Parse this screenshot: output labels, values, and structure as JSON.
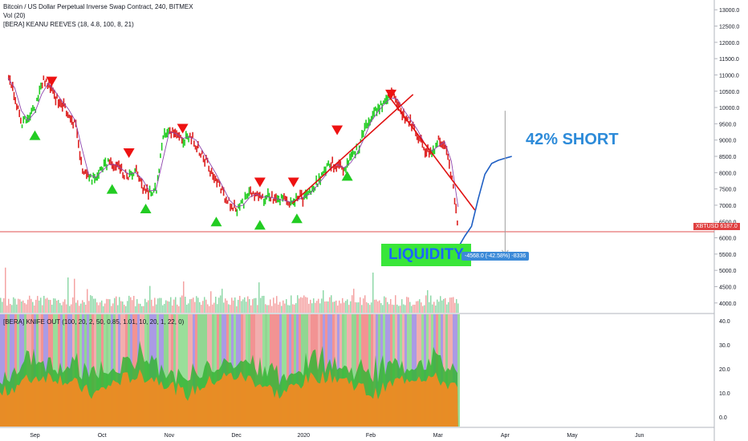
{
  "header": {
    "title": "Bitcoin / US Dollar Perpetual Inverse Swap Contract, 240, BITMEX",
    "volume_label": "Vol (20)",
    "indicator_label": "[BERA] KEANU REEVES (18, 4.8, 100, 8, 21)"
  },
  "annotations": {
    "short_callout": "42% SHORT",
    "liquidity_label": "LIQUIDITY",
    "measure_label": "-4568.0 (-42.58%) -8336",
    "price_tag": "XBTUSD 6187.0"
  },
  "lower_pane": {
    "label": "[BERA] KNIFE OUT (100, 20, 2, 50, 0.85, 1.01, 10, 20, 1, 22, 0)",
    "ticks": [
      "40.0",
      "30.0",
      "20.0",
      "10.0",
      "0.0"
    ],
    "tick_values": [
      40,
      30,
      20,
      10,
      0
    ]
  },
  "colors": {
    "up": "#26a69a",
    "down": "#e53935",
    "green_candle": "#22cc22",
    "red_candle": "#dd2222",
    "purple_line": "#8e44ad",
    "trend_line": "#e01010",
    "projection": "#1f5fc4",
    "triangle_up": "#22cc22",
    "triangle_down": "#ee1111",
    "hline": "#e05050"
  },
  "chart_data": {
    "type": "line",
    "title": "Bitcoin / US Dollar Perpetual Inverse Swap Contract, 240, BITMEX",
    "x_tick_labels": [
      "Sep",
      "Oct",
      "Nov",
      "Dec",
      "2020",
      "Feb",
      "Mar",
      "Apr",
      "May",
      "Jun"
    ],
    "y_tick_labels": [
      "13000.0",
      "12500.0",
      "12000.0",
      "11500.0",
      "11000.0",
      "10500.0",
      "10000.0",
      "9500.0",
      "9000.0",
      "8500.0",
      "8000.0",
      "7500.0",
      "7000.0",
      "6500.0",
      "6000.0",
      "5500.0",
      "5000.0",
      "4500.0",
      "4000.0"
    ],
    "y_tick_values": [
      13000,
      12500,
      12000,
      11500,
      11000,
      10500,
      10000,
      9500,
      9000,
      8500,
      8000,
      7500,
      7000,
      6500,
      6000,
      5500,
      5000,
      4500,
      4000
    ],
    "ylim": [
      3700,
      13300
    ],
    "x_index_range": [
      0,
      92
    ],
    "month_ticks": [
      {
        "label": "Sep",
        "x": 4
      },
      {
        "label": "Oct",
        "x": 14
      },
      {
        "label": "Nov",
        "x": 24
      },
      {
        "label": "Dec",
        "x": 34
      },
      {
        "label": "2020",
        "x": 44
      },
      {
        "label": "Feb",
        "x": 54
      },
      {
        "label": "Mar",
        "x": 64
      },
      {
        "label": "Apr",
        "x": 74
      },
      {
        "label": "May",
        "x": 84
      },
      {
        "label": "Jun",
        "x": 94
      }
    ],
    "series": [
      {
        "name": "",
        "x": [
          0,
          1,
          2,
          3,
          4,
          5,
          6,
          7,
          8,
          9,
          10,
          11,
          12,
          13,
          14,
          15,
          16,
          17,
          18,
          19,
          20,
          21,
          22,
          23,
          24,
          25,
          26,
          27,
          28,
          29,
          30,
          31,
          32,
          33,
          34,
          35,
          36,
          37,
          38,
          39,
          40,
          41,
          42,
          43,
          44,
          45,
          46,
          47,
          48,
          49,
          50,
          51,
          52,
          53,
          54,
          55,
          56,
          57,
          58,
          59,
          60,
          61,
          62,
          63,
          64,
          65,
          66,
          67
        ],
        "values": [
          10900,
          10300,
          9500,
          9700,
          10000,
          10800,
          10700,
          10300,
          10100,
          9800,
          9400,
          8100,
          7800,
          7900,
          8200,
          8300,
          8200,
          8000,
          7900,
          8100,
          7500,
          7400,
          7500,
          9200,
          9300,
          9100,
          9000,
          9200,
          8800,
          8500,
          8100,
          7800,
          7300,
          7000,
          6900,
          7100,
          7400,
          7300,
          7200,
          7300,
          7100,
          7200,
          7000,
          7300,
          7200,
          7500,
          7700,
          8000,
          8300,
          8200,
          8100,
          8500,
          8700,
          9400,
          9700,
          10000,
          10200,
          10400,
          10100,
          9700,
          9500,
          9100,
          8700,
          8600,
          9000,
          8900,
          7800,
          6100
        ],
        "color": "#dd2222"
      },
      {
        "name": "",
        "x": [
          67,
          68,
          69,
          70,
          71,
          72,
          73,
          74,
          75
        ],
        "values": [
          5700,
          6050,
          6350,
          7200,
          7950,
          8280,
          8380,
          8440,
          8500
        ],
        "color": "#1f5fc4"
      }
    ],
    "horizontal_line": 6187,
    "measure_arrow": {
      "x": 74,
      "from": 9900,
      "to": 5500
    },
    "trend_lines": [
      {
        "x1": 42.3,
        "y1": 7050,
        "x2": 60.3,
        "y2": 10400
      },
      {
        "x1": 56.5,
        "y1": 10400,
        "x2": 69.5,
        "y2": 6850
      }
    ],
    "triangles_up": [
      {
        "x": 4,
        "y": 9150
      },
      {
        "x": 15.5,
        "y": 7500
      },
      {
        "x": 20.5,
        "y": 6900
      },
      {
        "x": 31,
        "y": 6500
      },
      {
        "x": 37.5,
        "y": 6400
      },
      {
        "x": 43,
        "y": 6600
      },
      {
        "x": 50.5,
        "y": 7900
      }
    ],
    "triangles_down": [
      {
        "x": 6.5,
        "y": 10800
      },
      {
        "x": 18,
        "y": 8600
      },
      {
        "x": 26,
        "y": 9350
      },
      {
        "x": 37.5,
        "y": 7700
      },
      {
        "x": 42.5,
        "y": 7700
      },
      {
        "x": 49,
        "y": 9300
      },
      {
        "x": 57,
        "y": 10400
      }
    ]
  }
}
